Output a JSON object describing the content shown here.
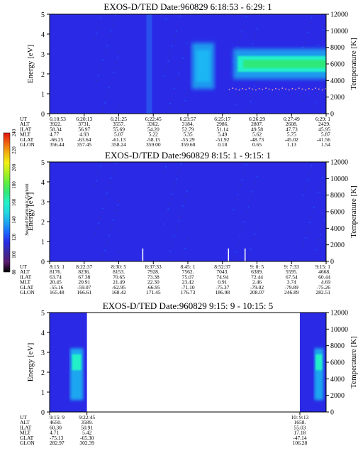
{
  "colors": {
    "background_blue": "#2a2ae6",
    "band_cyan": "#24f0c8",
    "band_green": "#2fe87a",
    "halo_blue": "#1ea6f0",
    "temperature_dots": "#f0a0b0"
  },
  "colorbar": {
    "label": "Second Harmonic Current",
    "ticks": [
      "80",
      "100",
      "120",
      "140",
      "160",
      "180",
      "200",
      "220",
      "240"
    ],
    "range": [
      80,
      240
    ],
    "colors": [
      "#000000",
      "#5a1a6e",
      "#3a2aa0",
      "#2a2ae6",
      "#1a6aff",
      "#1ea6f0",
      "#20d8e0",
      "#24f0c8",
      "#2fe87a",
      "#60f040",
      "#b0f020",
      "#f0f010",
      "#f0b010",
      "#f06010",
      "#e01010"
    ]
  },
  "chart_data": [
    {
      "type": "heatmap",
      "title": "EXOS-D/TED   Date:960829   6:18:53 - 6:29: 1",
      "ylabel": "Energy [eV]",
      "y2label": "Temperature [K]",
      "ylim": [
        0,
        5
      ],
      "y2lim": [
        0,
        12000
      ],
      "yticks": [
        "0",
        "1",
        "2",
        "3",
        "4",
        "5"
      ],
      "y2ticks": [
        "0",
        "2000",
        "4000",
        "6000",
        "8000",
        "10000",
        "12000"
      ],
      "bands": [
        {
          "t_start": 0.68,
          "t_end": 1.0,
          "e_low": 2.1,
          "e_high": 2.9,
          "level": "high"
        },
        {
          "t_start": 0.53,
          "t_end": 0.58,
          "e_low": 1.6,
          "e_high": 3.2,
          "level": "medium"
        }
      ],
      "temperature_dots": {
        "t_start": 0.65,
        "t_end": 1.0,
        "value": 3000
      },
      "row_labels": [
        "UT",
        "ALT",
        "ILAT",
        "MLT",
        "GLAT",
        "GLON"
      ],
      "columns": [
        [
          "6:18:53",
          "3922.",
          "58.34",
          "4.77",
          "-66.25",
          "356.44"
        ],
        [
          "6:20:13",
          "3731.",
          "56.97",
          "4.93",
          "-63.64",
          "357.45"
        ],
        [
          "6:21:25",
          "3557.",
          "55.69",
          "5.07",
          "-61.13",
          "358.24"
        ],
        [
          "6:22:45",
          "3362.",
          "54.20",
          "5.22",
          "-58.15",
          "359.00"
        ],
        [
          "6:23:57",
          "3184.",
          "52.79",
          "5.35",
          "-55.29",
          "359.60"
        ],
        [
          "6:25:17",
          "2986.",
          "51.14",
          "5.49",
          "-51.92",
          "0.18"
        ],
        [
          "6:26:29",
          "2807.",
          "49.58",
          "5.62",
          "-48.73",
          "0.65"
        ],
        [
          "6:27:49",
          "2608.",
          "47.73",
          "5.75",
          "-45.02",
          "1.13"
        ],
        [
          "6:29: 1",
          "2429.",
          "45.95",
          "5.87",
          "-41.56",
          "1.54"
        ]
      ]
    },
    {
      "type": "heatmap",
      "title": "EXOS-D/TED   Date:960829   8:15: 1 - 9:15: 1",
      "ylabel": "Energy [eV]",
      "y2label": "Temperature [K]",
      "ylim": [
        0,
        5
      ],
      "y2lim": [
        0,
        12000
      ],
      "yticks": [
        "0",
        "1",
        "2",
        "3",
        "4",
        "5"
      ],
      "y2ticks": [
        "0",
        "2000",
        "4000",
        "6000",
        "8000",
        "10000",
        "12000"
      ],
      "spikes": [
        0.335,
        0.645,
        0.705
      ],
      "row_labels": [
        "UT",
        "ALT",
        "ILAT",
        "MLT",
        "GLAT",
        "GLON"
      ],
      "columns": [
        [
          "8:15: 1",
          "8176.",
          "63.74",
          "20.45",
          "-55.16",
          "165.48"
        ],
        [
          "8:22:37",
          "8236.",
          "67.38",
          "20.91",
          "-59.07",
          "166.61"
        ],
        [
          "8:30: 5",
          "8153.",
          "70.65",
          "21.49",
          "-62.95",
          "168.42"
        ],
        [
          "8:37:33",
          "7928.",
          "73.38",
          "22.30",
          "-66.95",
          "171.45"
        ],
        [
          "8:45: 1",
          "7562.",
          "75.07",
          "23.42",
          "-71.10",
          "176.73"
        ],
        [
          "8:52:37",
          "7043.",
          "74.94",
          "0.91",
          "-75.37",
          "186.98"
        ],
        [
          "9: 0: 5",
          "6389.",
          "72.44",
          "2.46",
          "-79.02",
          "208.07"
        ],
        [
          "9: 7:33",
          "5595.",
          "67.54",
          "3.74",
          "-79.89",
          "246.89"
        ],
        [
          "9:15: 1",
          "4668.",
          "60.44",
          "4.69",
          "-75.26",
          "282.51"
        ]
      ]
    },
    {
      "type": "heatmap",
      "title": "EXOS-D/TED   Date:960829   9:15: 9 - 10:15: 5",
      "ylabel": "Energy [eV]",
      "y2label": "Temperature [K]",
      "ylim": [
        0,
        5
      ],
      "y2lim": [
        0,
        12000
      ],
      "yticks": [
        "0",
        "1",
        "2",
        "3",
        "4",
        "5"
      ],
      "y2ticks": [
        "0",
        "2000",
        "4000",
        "6000",
        "8000",
        "10000",
        "12000"
      ],
      "data_segments": [
        [
          0.0,
          0.135
        ],
        [
          0.905,
          1.0
        ]
      ],
      "row_labels": [
        "UT",
        "ALT",
        "ILAT",
        "MLT",
        "GLAT",
        "GLON"
      ],
      "columns": [
        [
          "9:15: 9",
          "4650.",
          "60.30",
          "4.71",
          "-75.13",
          "282.97"
        ],
        [
          "9:22:45",
          "3589.",
          "50.91",
          "5.42",
          "-65.30",
          "302.39"
        ],
        [
          "10: 9:13",
          "1658.",
          "55.03",
          "17.18",
          "-47.14",
          "106.28"
        ]
      ],
      "column_positions": [
        0.0,
        0.135,
        0.905
      ]
    }
  ]
}
